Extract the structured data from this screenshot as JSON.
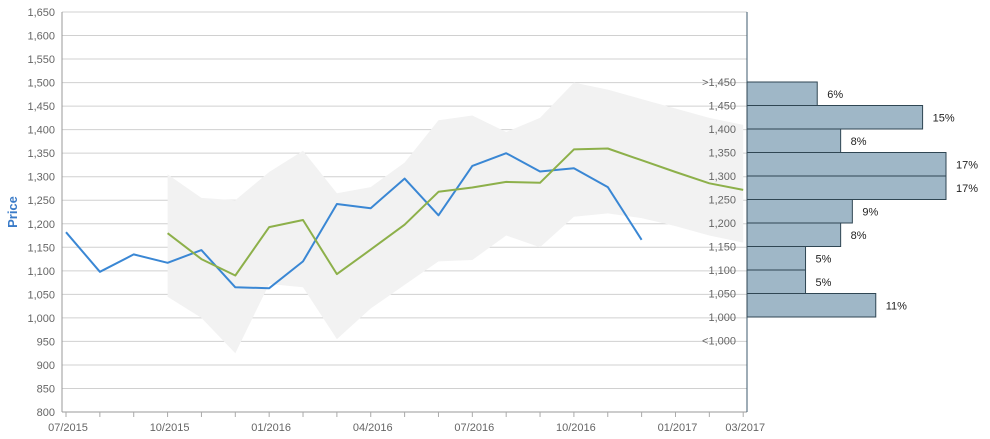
{
  "chart_data": {
    "type": "line",
    "ylabel": "Price",
    "ylim": [
      800,
      1650
    ],
    "y_ticks": [
      800,
      850,
      900,
      950,
      1000,
      1050,
      1100,
      1150,
      1200,
      1250,
      1300,
      1350,
      1400,
      1450,
      1500,
      1550,
      1600,
      1650
    ],
    "x_ticks": [
      "07/2015",
      "10/2015",
      "01/2016",
      "04/2016",
      "07/2016",
      "10/2016",
      "01/2017",
      "03/2017"
    ],
    "months": [
      "07/2015",
      "08/2015",
      "09/2015",
      "10/2015",
      "11/2015",
      "12/2015",
      "01/2016",
      "02/2016",
      "03/2016",
      "04/2016",
      "05/2016",
      "06/2016",
      "07/2016",
      "08/2016",
      "09/2016",
      "10/2016",
      "11/2016",
      "12/2016",
      "01/2017",
      "02/2017",
      "03/2017"
    ],
    "series": [
      {
        "color": "#3a87d4",
        "values": [
          1182,
          1098,
          1135,
          1117,
          1144,
          1065,
          1063,
          1120,
          1242,
          1233,
          1296,
          1218,
          1323,
          1350,
          1311,
          1318,
          1278,
          1166
        ]
      },
      {
        "color": "#8db04a",
        "values": [
          null,
          null,
          null,
          1180,
          1125,
          1090,
          1193,
          1208,
          1093,
          1145,
          1198,
          1268,
          1277,
          1289,
          1287,
          1358,
          1360,
          1335,
          1310,
          1286,
          1272
        ]
      }
    ],
    "band": {
      "color": "#f2f2f2",
      "upper": [
        null,
        null,
        null,
        1305,
        1255,
        1250,
        1310,
        1355,
        1265,
        1278,
        1330,
        1420,
        1430,
        1395,
        1425,
        1500,
        1485,
        1465,
        1445,
        1425,
        1410
      ],
      "lower": [
        null,
        null,
        null,
        1045,
        1000,
        925,
        1072,
        1065,
        955,
        1020,
        1070,
        1120,
        1123,
        1175,
        1150,
        1215,
        1222,
        1212,
        1195,
        1175,
        1160
      ]
    },
    "distribution": {
      "color": "#9fb7c7",
      "bins": [
        {
          "label": ">1,450",
          "pct": "6%",
          "value": 6
        },
        {
          "label": "1,450",
          "pct": "15%",
          "value": 15
        },
        {
          "label": "1,400",
          "pct": "8%",
          "value": 8
        },
        {
          "label": "1,350",
          "pct": "17%",
          "value": 17
        },
        {
          "label": "1,300",
          "pct": "17%",
          "value": 17
        },
        {
          "label": "1,250",
          "pct": "9%",
          "value": 9
        },
        {
          "label": "1,200",
          "pct": "8%",
          "value": 8
        },
        {
          "label": "1,150",
          "pct": "5%",
          "value": 5
        },
        {
          "label": "1,100",
          "pct": "5%",
          "value": 5
        },
        {
          "label": "1,050",
          "pct": "11%",
          "value": 11
        },
        {
          "label": "1,000",
          "pct": "",
          "value": 0
        },
        {
          "label": "<1,000",
          "pct": "",
          "value": 0
        }
      ]
    }
  }
}
